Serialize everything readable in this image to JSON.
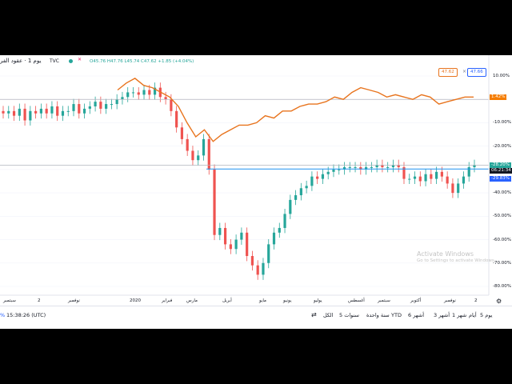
{
  "header": {
    "title": "يوم 1 · عقود الفر",
    "source": "TVC",
    "ohlc": "O45.76 H47.76 L45.74 C47.62 +1.85 (+4.04%)",
    "compare_left": "47.62",
    "compare_right": "47.66",
    "compare_x": "×"
  },
  "colors": {
    "up": "#26a69a",
    "down": "#ef5350",
    "compare_line": "#e8741e",
    "blue_line": "#2196f3",
    "pct_badge_orange": "#f57c00",
    "pct_badge_teal": "#26a69a",
    "pct_badge_blue": "#2962ff"
  },
  "price_axis": {
    "ticks": [
      "10.00%",
      "0.00%",
      "-10.00%",
      "-20.00%",
      "-30.00%",
      "-40.00%",
      "-50.00%",
      "-60.00%",
      "-70.00%",
      "-80.00%"
    ],
    "badges": [
      {
        "text": "1.42%",
        "kind": "orange"
      },
      {
        "text": "-28.20%",
        "kind": "teal"
      },
      {
        "text": "06:21:34",
        "kind": "dark"
      },
      {
        "text": "-29.83%",
        "kind": "blue"
      }
    ]
  },
  "time_axis": {
    "labels": [
      "سبتمبر",
      "2",
      "نوفمبر",
      "2020",
      "فبراير",
      "مارس",
      "أبريل",
      "مايو",
      "يونيو",
      "يوليو",
      "أغسطس",
      "سبتمبر",
      "أكتوبر",
      "نوفمبر",
      "2"
    ]
  },
  "bottom_bar": {
    "timeframes": [
      "يوم 5",
      "أيام",
      "1 شهر",
      "3 أشهر",
      "6 أشهر",
      "YTD",
      "سنة واحدة",
      "5 سنوات",
      "الكل"
    ],
    "clock": "15:38:26 (UTC)",
    "pct": "%"
  },
  "watermark": {
    "line1": "Activate Windows",
    "line2": "Go to Settings to activate Windows."
  },
  "chart_data": {
    "type": "line",
    "series": [
      {
        "values": [
          -6,
          -5,
          -7,
          -4,
          -9,
          -5,
          -6,
          -4,
          -6,
          -3,
          -7,
          -5,
          -5,
          -2,
          -6,
          -4,
          -3,
          -1,
          -4,
          -2,
          -2,
          0,
          1,
          3,
          3,
          2,
          4,
          2,
          5,
          1,
          0,
          -5,
          -12,
          -17,
          -22,
          -26,
          -24,
          -17,
          -30,
          -58,
          -55,
          -62,
          -64,
          -60,
          -57,
          -67,
          -71,
          -75,
          -70,
          -62,
          -57,
          -55,
          -49,
          -43,
          -41,
          -38,
          -37,
          -33,
          -34,
          -32,
          -31,
          -30,
          -30,
          -29,
          -29,
          -29,
          -30,
          -29,
          -29,
          -28,
          -29,
          -29,
          -28,
          -29,
          -34,
          -34,
          -33,
          -35,
          -32,
          -34,
          -31,
          -33,
          -36,
          -40,
          -36,
          -33,
          -29,
          -28
        ]
      },
      {
        "values": [
          4,
          7,
          9,
          6,
          5,
          3,
          1,
          -3,
          -10,
          -16,
          -13,
          -18,
          -15,
          -13,
          -11,
          -11,
          -10,
          -7,
          -8,
          -5,
          -5,
          -3,
          -2,
          -2,
          -1,
          1,
          0,
          3,
          5,
          4,
          3,
          1,
          2,
          1,
          0,
          2,
          1,
          -2,
          -1,
          0,
          1,
          1
        ]
      }
    ]
  }
}
